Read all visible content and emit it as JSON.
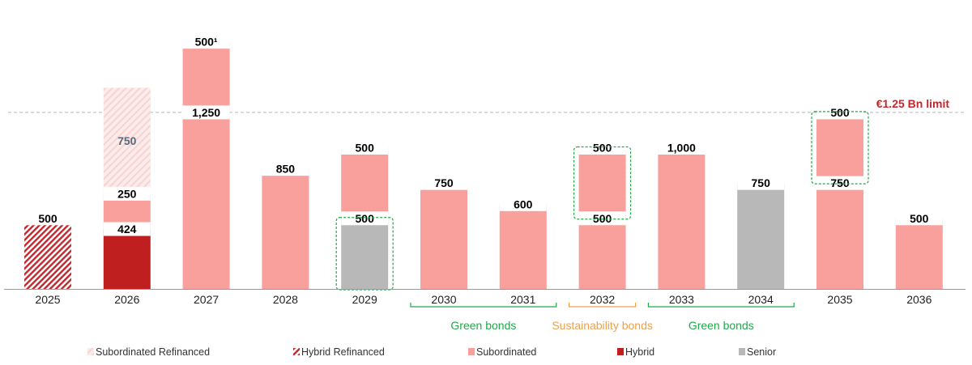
{
  "chart_data": {
    "type": "bar",
    "subtype": "stacked",
    "title": "",
    "unit": "EUR millions",
    "categories": [
      "2025",
      "2026",
      "2027",
      "2028",
      "2029",
      "2030",
      "2031",
      "2032",
      "2033",
      "2034",
      "2035",
      "2036"
    ],
    "limit": {
      "value": 1250,
      "label": "€1.25 Bn limit"
    },
    "series_names": {
      "hybrid_refinanced": "Hybrid Refinanced",
      "hybrid": "Hybrid",
      "subordinated": "Subordinated",
      "senior": "Senior",
      "subordinated_refinanced": "Subordinated Refinanced"
    },
    "colors": {
      "hybrid_refinanced": "#c0282e",
      "hybrid": "#c01f1f",
      "subordinated": "#f9a09d",
      "senior": "#b8b8b8",
      "subordinated_refinanced": "#f7d3d1",
      "limit_label": "#c0282e",
      "green": "#22a94a",
      "orange": "#f0a04b"
    },
    "bars": [
      {
        "year": "2025",
        "segments": [
          {
            "series": "hybrid_refinanced",
            "value": 500,
            "label": "500"
          }
        ]
      },
      {
        "year": "2026",
        "segments": [
          {
            "series": "hybrid",
            "value": 424,
            "label": "424"
          },
          {
            "series": "subordinated",
            "value": 250,
            "label": "250"
          },
          {
            "series": "subordinated_refinanced",
            "value": 750,
            "label": "750"
          }
        ]
      },
      {
        "year": "2027",
        "segments": [
          {
            "series": "subordinated",
            "value": 1250,
            "label": "1,250"
          },
          {
            "series": "subordinated",
            "value": 500,
            "label": "500¹"
          }
        ]
      },
      {
        "year": "2028",
        "segments": [
          {
            "series": "subordinated",
            "value": 850,
            "label": "850"
          }
        ]
      },
      {
        "year": "2029",
        "segments": [
          {
            "series": "senior",
            "value": 500,
            "label": "500"
          },
          {
            "series": "subordinated",
            "value": 500,
            "label": "500"
          }
        ],
        "highlight_segments": [
          0
        ]
      },
      {
        "year": "2030",
        "segments": [
          {
            "series": "subordinated",
            "value": 750,
            "label": "750"
          }
        ]
      },
      {
        "year": "2031",
        "segments": [
          {
            "series": "subordinated",
            "value": 600,
            "label": "600"
          }
        ]
      },
      {
        "year": "2032",
        "segments": [
          {
            "series": "subordinated",
            "value": 500,
            "label": "500"
          },
          {
            "series": "subordinated",
            "value": 500,
            "label": "500"
          }
        ],
        "highlight_segments": [
          1
        ]
      },
      {
        "year": "2033",
        "segments": [
          {
            "series": "subordinated",
            "value": 1000,
            "label": "1,000"
          }
        ]
      },
      {
        "year": "2034",
        "segments": [
          {
            "series": "senior",
            "value": 750,
            "label": "750"
          }
        ]
      },
      {
        "year": "2035",
        "segments": [
          {
            "series": "subordinated",
            "value": 750,
            "label": "750"
          },
          {
            "series": "subordinated",
            "value": 500,
            "label": "500"
          }
        ],
        "highlight_segments": [
          1
        ]
      },
      {
        "year": "2036",
        "segments": [
          {
            "series": "subordinated",
            "value": 500,
            "label": "500"
          }
        ]
      }
    ],
    "annotations": [
      {
        "label": "Green bonds",
        "from": "2030",
        "to": "2031",
        "color": "green"
      },
      {
        "label": "Sustainability bonds",
        "from": "2032",
        "to": "2032",
        "color": "orange"
      },
      {
        "label": "Green bonds",
        "from": "2033",
        "to": "2034",
        "color": "green"
      }
    ],
    "legend": [
      {
        "series": "subordinated_refinanced",
        "label": "Subordinated Refinanced"
      },
      {
        "series": "hybrid_refinanced",
        "label": "Hybrid Refinanced"
      },
      {
        "series": "subordinated",
        "label": "Subordinated"
      },
      {
        "series": "hybrid",
        "label": "Hybrid"
      },
      {
        "series": "senior",
        "label": "Senior"
      }
    ]
  }
}
